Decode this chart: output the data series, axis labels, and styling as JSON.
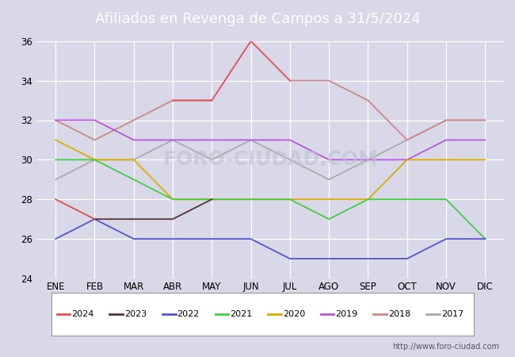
{
  "title": "Afiliados en Revenga de Campos a 31/5/2024",
  "title_bg": "#5588bb",
  "months": [
    "ENE",
    "FEB",
    "MAR",
    "ABR",
    "MAY",
    "JUN",
    "JUL",
    "AGO",
    "SEP",
    "OCT",
    "NOV",
    "DIC"
  ],
  "watermark": "http://www.foro-ciudad.com",
  "ylim": [
    24,
    36
  ],
  "yticks": [
    24,
    26,
    28,
    30,
    32,
    34,
    36
  ],
  "series": {
    "2024": {
      "color": "#e05050",
      "data": [
        28,
        27,
        null,
        33,
        33,
        36,
        34,
        null,
        null,
        null,
        null,
        null
      ]
    },
    "2023": {
      "color": "#553333",
      "data": [
        null,
        27,
        27,
        27,
        28,
        null,
        null,
        null,
        null,
        null,
        null,
        null
      ]
    },
    "2022": {
      "color": "#5555cc",
      "data": [
        26,
        27,
        26,
        26,
        26,
        26,
        25,
        25,
        25,
        25,
        26,
        26
      ]
    },
    "2021": {
      "color": "#44cc44",
      "data": [
        30,
        30,
        29,
        28,
        28,
        28,
        28,
        27,
        28,
        28,
        28,
        26
      ]
    },
    "2020": {
      "color": "#ddaa00",
      "data": [
        31,
        30,
        30,
        28,
        28,
        28,
        28,
        28,
        28,
        30,
        30,
        30
      ]
    },
    "2019": {
      "color": "#bb55dd",
      "data": [
        32,
        32,
        31,
        31,
        31,
        31,
        31,
        30,
        30,
        30,
        31,
        31
      ]
    },
    "2018": {
      "color": "#cc8888",
      "data": [
        32,
        31,
        32,
        33,
        33,
        null,
        34,
        34,
        33,
        31,
        32,
        32
      ]
    },
    "2017": {
      "color": "#aaaaaa",
      "data": [
        29,
        30,
        30,
        31,
        30,
        31,
        30,
        29,
        30,
        31,
        32,
        32
      ]
    }
  },
  "bg_color": "#d8d8e8",
  "plot_bg": "#d8d8e8",
  "grid_color": "#ffffff",
  "legend_years": [
    "2024",
    "2023",
    "2022",
    "2021",
    "2020",
    "2019",
    "2018",
    "2017"
  ]
}
